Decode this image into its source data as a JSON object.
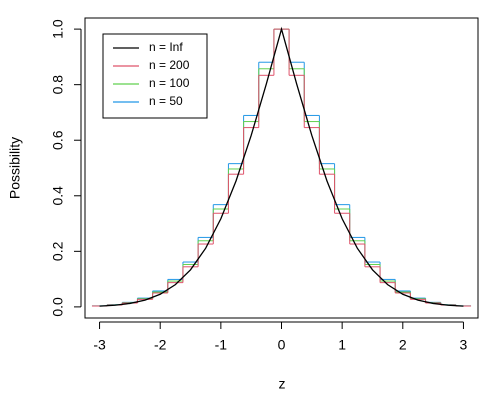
{
  "chart_data": {
    "type": "line",
    "x_label": "z",
    "y_label": "Possibility",
    "x": [
      -3,
      -2.75,
      -2.5,
      -2.25,
      -2,
      -1.75,
      -1.5,
      -1.25,
      -1,
      -0.75,
      -0.5,
      -0.25,
      0,
      0.25,
      0.5,
      0.75,
      1,
      1.25,
      1.5,
      1.75,
      2,
      2.25,
      2.5,
      2.75,
      3
    ],
    "series": [
      {
        "name": "n = Inf",
        "color": "#000000",
        "step": false,
        "values": [
          0.0027,
          0.006,
          0.0124,
          0.0244,
          0.0455,
          0.0801,
          0.1336,
          0.2113,
          0.3173,
          0.4533,
          0.6171,
          0.8026,
          1,
          0.8026,
          0.6171,
          0.4533,
          0.3173,
          0.2113,
          0.1336,
          0.0801,
          0.0455,
          0.0244,
          0.0124,
          0.006,
          0.0027
        ]
      },
      {
        "name": "n = 200",
        "color": "#DF536B",
        "step": true,
        "values": [
          0.0031,
          0.0067,
          0.0139,
          0.0271,
          0.05,
          0.0873,
          0.1443,
          0.2263,
          0.3371,
          0.4777,
          0.6455,
          0.8337,
          1,
          0.8337,
          0.6455,
          0.4777,
          0.3371,
          0.2263,
          0.1443,
          0.0873,
          0.05,
          0.0271,
          0.0139,
          0.0067,
          0.0031
        ]
      },
      {
        "name": "n = 100",
        "color": "#61D04F",
        "step": true,
        "values": [
          0.0034,
          0.0074,
          0.0151,
          0.0293,
          0.0536,
          0.093,
          0.1527,
          0.238,
          0.3524,
          0.4965,
          0.6672,
          0.8572,
          1,
          0.8572,
          0.6672,
          0.4965,
          0.3524,
          0.238,
          0.1527,
          0.093,
          0.0536,
          0.0293,
          0.0151,
          0.0074,
          0.0034
        ]
      },
      {
        "name": "n = 50",
        "color": "#2297E6",
        "step": true,
        "values": [
          0.0037,
          0.008,
          0.0164,
          0.0316,
          0.0574,
          0.0989,
          0.1615,
          0.2501,
          0.3681,
          0.5157,
          0.6892,
          0.8808,
          1,
          0.8808,
          0.6892,
          0.5157,
          0.3681,
          0.2501,
          0.1615,
          0.0989,
          0.0574,
          0.0316,
          0.0164,
          0.008,
          0.0037
        ]
      }
    ],
    "xlim": [
      -3.24,
      3.24
    ],
    "ylim": [
      -0.04,
      1.04
    ],
    "xticks": [
      -3,
      -2,
      -1,
      0,
      1,
      2,
      3
    ],
    "yticks": [
      {
        "value": 0,
        "label": "0.0"
      },
      0.2,
      0.4,
      0.6,
      0.8,
      {
        "value": 1,
        "label": "1.0"
      }
    ],
    "legend": "topleft",
    "grid": false
  }
}
